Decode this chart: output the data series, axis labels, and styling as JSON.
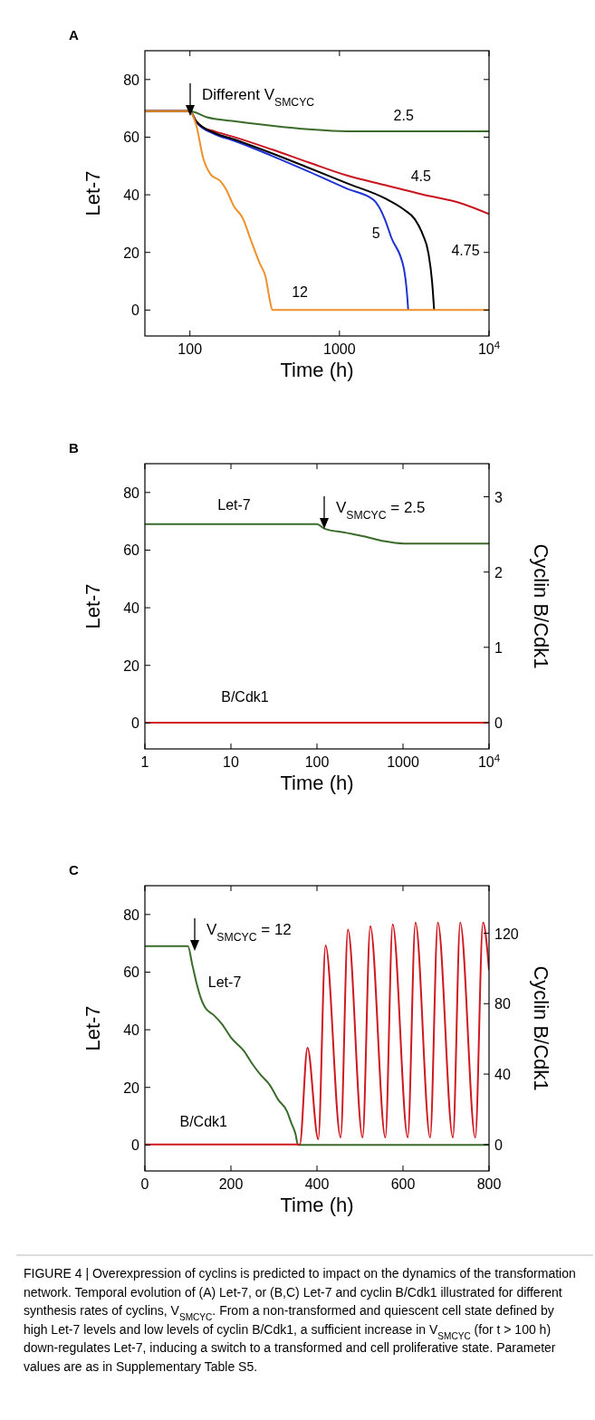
{
  "chart_data": [
    {
      "type": "line",
      "title": "A",
      "xlabel": "Time (h)",
      "ylabel": "Let-7",
      "log": "x",
      "xlim": [
        50,
        10000
      ],
      "xticks": [
        100,
        1000,
        {
          "value": 10000,
          "label": "10$^{4}$"
        }
      ],
      "ylim": [
        -9,
        90
      ],
      "yticks": [
        0,
        20,
        40,
        60,
        80
      ],
      "annotations": [
        "Different V$_{SMCYC}$"
      ],
      "series": [
        {
          "name": "2.5",
          "color": "#3b6b2b",
          "x": [
            50,
            100,
            130,
            196,
            350,
            626,
            1123,
            2008,
            10000
          ],
          "values": [
            69,
            69,
            66.9,
            65.6,
            64,
            62.7,
            62,
            62,
            62
          ]
        },
        {
          "name": "4.5",
          "color": "#c8141e",
          "x": [
            50,
            100,
            110,
            123,
            147,
            196,
            350,
            626,
            1123,
            2008,
            3592,
            6424,
            10000
          ],
          "values": [
            69,
            69,
            65.6,
            63.3,
            62,
            60.1,
            55.8,
            51.2,
            46.7,
            43.4,
            40.1,
            37.1,
            33.3
          ]
        },
        {
          "name": "5",
          "color": "#1f32d2",
          "x": [
            50,
            100,
            110,
            147,
            196,
            350,
            626,
            1123,
            1692,
            2008,
            2223,
            2690,
            2843,
            2881
          ],
          "values": [
            69,
            69,
            65.3,
            61,
            58.8,
            53.6,
            48,
            42.1,
            38.2,
            31.6,
            25.1,
            14.6,
            4.2,
            0
          ]
        },
        {
          "name": "4.75",
          "color": "#000000",
          "x": [
            50,
            100,
            110,
            147,
            196,
            350,
            626,
            1123,
            2008,
            2690,
            3185,
            3592,
            3927,
            4168,
            4293
          ],
          "values": [
            69,
            69,
            65.5,
            61.4,
            59.3,
            54.5,
            49.3,
            44,
            38.8,
            34.9,
            31.6,
            26.4,
            19.9,
            9.4,
            0
          ]
        },
        {
          "name": "12",
          "color": "#f0902a",
          "x": [
            50,
            100,
            110,
            123,
            138,
            160,
            174,
            196,
            227,
            255,
            294,
            321,
            340,
            356,
            10000
          ],
          "values": [
            69,
            69,
            64.3,
            52.5,
            47,
            44.7,
            42,
            36.2,
            31.6,
            24.4,
            16,
            11.4,
            4.2,
            0,
            0
          ]
        }
      ]
    },
    {
      "type": "line",
      "title": "B",
      "xlabel": "Time (h)",
      "ylabel": "Let-7",
      "y2label": "Cyclin B/Cdk1",
      "log": "x",
      "xlim": [
        1,
        10000
      ],
      "xticks": [
        1,
        10,
        100,
        1000,
        {
          "value": 10000,
          "label": "10$^{4}$"
        }
      ],
      "ylim": [
        -9,
        90
      ],
      "yticks": [
        0,
        20,
        40,
        60,
        80
      ],
      "y2lim": [
        -0.35,
        3.44
      ],
      "y2ticks": [
        0,
        1,
        2,
        3
      ],
      "annotations": [
        "V$_{SMCYC}$ = 2.5"
      ],
      "series": [
        {
          "name": "Let-7",
          "color": "#3b6b2b",
          "x": [
            1,
            100,
            121,
            220,
            363,
            600,
            1010,
            1660,
            10000
          ],
          "values": [
            69,
            69,
            67.5,
            66,
            64.7,
            63.1,
            62.3,
            62.3,
            62.3
          ]
        },
        {
          "name": "B/Cdk1",
          "color": "#d01820",
          "axis": "y2",
          "x": [
            1,
            10000
          ],
          "values": [
            0,
            0
          ]
        }
      ]
    },
    {
      "type": "line",
      "title": "C",
      "xlabel": "Time (h)",
      "ylabel": "Let-7",
      "y2label": "Cyclin B/Cdk1",
      "xlim": [
        0,
        800
      ],
      "xticks": [
        0,
        200,
        400,
        600,
        800
      ],
      "ylim": [
        -9,
        90
      ],
      "yticks": [
        0,
        20,
        40,
        60,
        80
      ],
      "y2lim": [
        -15,
        147
      ],
      "y2ticks": [
        0,
        40,
        80,
        120
      ],
      "annotations": [
        "V$_{SMCYC}$ = 12",
        "FIGURE 4 | Overexpression of cyclins is predicted to impact on the dynamics of the transformation network. Temporal evolution of (A) Let-7, or (B,C) Let-7 and cyclin B/Cdk1 illustrated for different synthesis rates of cyclins, V$_{SMCYC}$. From a non-transformed and quiescent cell state defined by high Let-7 levels and low levels of cyclin B/Cdk1, a sufficient increase in V$_{SMCYC}$ (for t > 100 h) down-regulates Let-7, inducing a switch to a transformed and cell proliferative state. Parameter values are as in Supplementary Table S5."
      ],
      "series": [
        {
          "name": "Let-7",
          "color": "#3b6b2b",
          "x": [
            0,
            100,
            110,
            120,
            130,
            140,
            160,
            180,
            200,
            230,
            250,
            270,
            290,
            310,
            330,
            340,
            350,
            356,
            800
          ],
          "values": [
            69,
            69,
            62.7,
            56.2,
            51,
            47.7,
            45.1,
            41.8,
            37.3,
            32.7,
            28.1,
            24.2,
            20.9,
            15.7,
            11.8,
            7.8,
            3.9,
            0,
            0
          ]
        },
        {
          "name": "B/Cdk1",
          "color": "#d01820",
          "axis": "y2",
          "x": [
            0,
            360,
            378,
            403,
            420,
            455,
            472,
            506,
            524,
            559,
            576,
            611,
            629,
            663,
            681,
            716,
            733,
            768,
            786,
            800
          ],
          "values": [
            0,
            0,
            55,
            3,
            113,
            4,
            122,
            4,
            124,
            4,
            125,
            4,
            126,
            4,
            126,
            4,
            126,
            4,
            126,
            99
          ]
        }
      ]
    }
  ]
}
